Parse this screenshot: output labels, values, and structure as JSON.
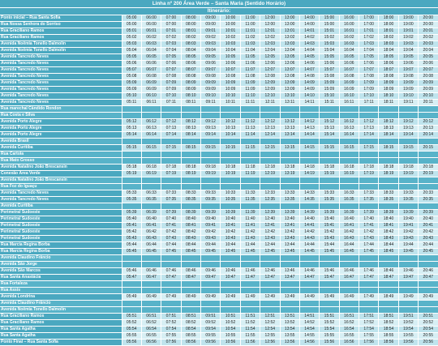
{
  "title": "Linha nº 200 Área Verde – Santa Maria (Sentido Horário)",
  "itinerary_label": "Itinerário:",
  "rows": [
    {
      "stop": "Ponto inicial – Rua Santa Sofia",
      "times": [
        "05:00",
        "06:00",
        "07:00",
        "08:00",
        "09:00",
        "10:00",
        "11:00",
        "12:00",
        "13:00",
        "14:00",
        "15:00",
        "16:00",
        "17:00",
        "18:00",
        "19:00",
        "20:00"
      ]
    },
    {
      "stop": "Rua Nossa Senhora do Sorriso",
      "times": [
        "05:00",
        "06:00",
        "07:00",
        "08:00",
        "09:00",
        "10:00",
        "11:00",
        "12:00",
        "13:00",
        "14:00",
        "15:00",
        "16:00",
        "17:00",
        "18:00",
        "19:00",
        "20:00"
      ]
    },
    {
      "stop": "Rua Graciliano Ramos",
      "times": [
        "05:01",
        "06:01",
        "07:01",
        "08:01",
        "09:01",
        "10:01",
        "11:01",
        "12:01",
        "13:01",
        "14:01",
        "15:01",
        "16:01",
        "17:01",
        "18:01",
        "19:01",
        "20:01"
      ]
    },
    {
      "stop": "Rua Graciliano Ramos",
      "times": [
        "05:02",
        "06:02",
        "07:02",
        "08:02",
        "09:02",
        "10:02",
        "11:02",
        "12:02",
        "13:02",
        "14:02",
        "15:02",
        "16:02",
        "17:02",
        "18:02",
        "19:02",
        "20:02"
      ]
    },
    {
      "stop": "Avenida Noêmia Tonello Dalmolin",
      "times": [
        "05:03",
        "06:03",
        "07:03",
        "08:03",
        "09:03",
        "10:03",
        "11:03",
        "12:03",
        "13:03",
        "14:03",
        "15:03",
        "16:03",
        "17:03",
        "18:03",
        "19:03",
        "20:03"
      ]
    },
    {
      "stop": "Avenida Noêmia Tonello Dalmolin",
      "times": [
        "05:04",
        "06:04",
        "07:04",
        "08:04",
        "09:04",
        "10:04",
        "11:04",
        "12:04",
        "13:04",
        "14:04",
        "15:04",
        "16:04",
        "17:04",
        "18:04",
        "19:04",
        "20:04"
      ]
    },
    {
      "stop": "Avenida Tancredo Neves",
      "times": [
        "05:05",
        "06:05",
        "07:05",
        "08:05",
        "09:05",
        "10:05",
        "11:05",
        "12:05",
        "13:05",
        "14:05",
        "15:05",
        "16:05",
        "17:05",
        "18:05",
        "19:05",
        "20:05"
      ]
    },
    {
      "stop": "Avenida Tancredo Neves",
      "times": [
        "05:06",
        "06:06",
        "07:06",
        "08:06",
        "09:06",
        "10:06",
        "11:06",
        "12:06",
        "13:06",
        "14:06",
        "15:06",
        "16:06",
        "17:06",
        "18:06",
        "19:06",
        "20:06"
      ]
    },
    {
      "stop": "Avenida Tancredo Neves",
      "times": [
        "05:07",
        "06:07",
        "07:07",
        "08:07",
        "09:07",
        "10:07",
        "11:07",
        "12:07",
        "13:07",
        "14:07",
        "15:07",
        "16:07",
        "17:07",
        "18:07",
        "19:07",
        "20:07"
      ]
    },
    {
      "stop": "Avenida Tancredo Neves",
      "times": [
        "05:08",
        "06:08",
        "07:08",
        "08:08",
        "09:08",
        "10:08",
        "11:08",
        "12:08",
        "13:08",
        "14:08",
        "15:08",
        "16:08",
        "17:08",
        "18:08",
        "19:08",
        "20:08"
      ]
    },
    {
      "stop": "Avenida Tancredo Neves",
      "times": [
        "05:09",
        "06:09",
        "07:09",
        "08:09",
        "09:09",
        "10:09",
        "11:09",
        "12:09",
        "13:09",
        "14:09",
        "15:09",
        "16:09",
        "17:09",
        "18:09",
        "19:09",
        "20:09"
      ]
    },
    {
      "stop": "Avenida Tancredo Neves",
      "times": [
        "05:09",
        "06:09",
        "07:09",
        "08:09",
        "09:09",
        "10:09",
        "11:09",
        "12:09",
        "13:09",
        "14:09",
        "15:09",
        "16:09",
        "17:09",
        "18:09",
        "19:09",
        "20:09"
      ]
    },
    {
      "stop": "Avenida Tancredo Neves",
      "times": [
        "05:10",
        "06:10",
        "07:10",
        "08:10",
        "09:10",
        "10:10",
        "11:10",
        "12:10",
        "13:10",
        "14:10",
        "15:10",
        "16:10",
        "17:10",
        "18:10",
        "19:10",
        "20:10"
      ]
    },
    {
      "stop": "Avenida Tancredo Neves",
      "times": [
        "05:11",
        "06:11",
        "07:11",
        "08:11",
        "09:11",
        "10:11",
        "11:11",
        "12:11",
        "13:11",
        "14:11",
        "15:11",
        "16:11",
        "17:11",
        "18:11",
        "19:11",
        "20:11"
      ]
    },
    {
      "stop": "Rua marechal Cândido Rondon",
      "times": []
    },
    {
      "stop": "Rua Costa e Silva",
      "times": []
    },
    {
      "stop": "Avenida Porto Alegre",
      "times": [
        "05:12",
        "06:12",
        "07:12",
        "08:12",
        "09:12",
        "10:12",
        "11:12",
        "12:12",
        "13:12",
        "14:12",
        "15:12",
        "16:12",
        "17:12",
        "18:12",
        "19:12",
        "20:12"
      ]
    },
    {
      "stop": "Avenida Porto Alegre",
      "times": [
        "05:13",
        "06:13",
        "07:13",
        "08:13",
        "09:13",
        "10:13",
        "11:13",
        "12:13",
        "13:13",
        "14:13",
        "15:13",
        "16:13",
        "17:13",
        "18:13",
        "19:13",
        "20:13"
      ]
    },
    {
      "stop": "Avenida Porto Alegre",
      "times": [
        "05:14",
        "06:14",
        "07:14",
        "08:14",
        "09:14",
        "10:14",
        "11:14",
        "12:14",
        "13:14",
        "14:14",
        "15:14",
        "16:14",
        "17:14",
        "18:14",
        "19:14",
        "20:14"
      ]
    },
    {
      "stop": "Avenida Brasil",
      "times": []
    },
    {
      "stop": "Avenida Curitiba",
      "times": [
        "05:15",
        "06:15",
        "07:15",
        "08:15",
        "09:15",
        "10:15",
        "11:15",
        "12:15",
        "13:15",
        "14:15",
        "15:15",
        "16:15",
        "17:15",
        "18:15",
        "19:15",
        "20:15"
      ]
    },
    {
      "stop": "Rua Cartola",
      "times": []
    },
    {
      "stop": "Rua Mato Grosso",
      "times": []
    },
    {
      "stop": "Avenida Natalino João Brescansin",
      "times": [
        "05:18",
        "06:18",
        "07:18",
        "08:18",
        "09:18",
        "10:18",
        "11:18",
        "12:18",
        "13:18",
        "14:18",
        "15:18",
        "16:18",
        "17:18",
        "18:18",
        "19:18",
        "20:18"
      ]
    },
    {
      "stop": "Conexão Área Verde",
      "times": [
        "05:19",
        "06:19",
        "07:19",
        "08:19",
        "09:19",
        "10:19",
        "11:19",
        "12:19",
        "13:19",
        "14:19",
        "15:19",
        "16:19",
        "17:19",
        "18:19",
        "19:19",
        "20:19"
      ]
    },
    {
      "stop": "Avenida Natalino João Brescansin",
      "times": []
    },
    {
      "stop": "Rua Foz do Iguaçu",
      "times": []
    },
    {
      "stop": "Avenida Tancredo Neves",
      "times": [
        "05:33",
        "06:33",
        "07:33",
        "08:33",
        "09:33",
        "10:33",
        "11:33",
        "12:33",
        "13:33",
        "14:33",
        "15:33",
        "16:33",
        "17:33",
        "18:33",
        "19:33",
        "20:33"
      ]
    },
    {
      "stop": "Avenida Tancredo Neves",
      "times": [
        "05:35",
        "06:35",
        "07:35",
        "08:35",
        "09:35",
        "10:35",
        "11:35",
        "12:35",
        "13:35",
        "14:35",
        "15:35",
        "16:35",
        "17:35",
        "18:35",
        "19:35",
        "20:35"
      ]
    },
    {
      "stop": "Avenida Curitiba",
      "times": []
    },
    {
      "stop": "Perimetral Sudoeste",
      "times": [
        "05:39",
        "06:39",
        "07:39",
        "08:39",
        "09:39",
        "10:39",
        "11:39",
        "12:39",
        "13:39",
        "14:39",
        "15:39",
        "16:39",
        "17:39",
        "18:39",
        "19:39",
        "20:39"
      ]
    },
    {
      "stop": "Perimetral Sudoeste",
      "times": [
        "05:40",
        "06:40",
        "07:40",
        "08:40",
        "09:40",
        "10:40",
        "11:40",
        "12:40",
        "13:40",
        "14:40",
        "15:40",
        "16:40",
        "17:40",
        "18:40",
        "19:40",
        "20:40"
      ]
    },
    {
      "stop": "Perimetral Sudoeste",
      "times": [
        "05:41",
        "06:41",
        "07:41",
        "08:41",
        "09:41",
        "10:41",
        "11:41",
        "12:41",
        "13:41",
        "14:41",
        "15:41",
        "16:41",
        "17:41",
        "18:41",
        "19:41",
        "20:41"
      ]
    },
    {
      "stop": "Perimetral Sudoeste",
      "times": [
        "05:42",
        "06:42",
        "07:42",
        "08:42",
        "09:42",
        "10:42",
        "11:42",
        "12:42",
        "13:42",
        "14:42",
        "15:42",
        "16:42",
        "17:42",
        "18:42",
        "19:42",
        "20:42"
      ]
    },
    {
      "stop": "Perimetral Sudoeste",
      "times": [
        "05:43",
        "06:43",
        "07:43",
        "08:43",
        "09:43",
        "10:43",
        "11:43",
        "12:43",
        "13:43",
        "14:43",
        "15:43",
        "16:43",
        "17:43",
        "18:43",
        "19:43",
        "20:43"
      ]
    },
    {
      "stop": "Rua Marcia Regina Borba",
      "times": [
        "05:44",
        "06:44",
        "07:44",
        "08:44",
        "09:44",
        "10:44",
        "11:44",
        "12:44",
        "13:44",
        "14:44",
        "15:44",
        "16:44",
        "17:44",
        "18:44",
        "19:44",
        "20:44"
      ]
    },
    {
      "stop": "Rua Marcia Regina Borba",
      "times": [
        "05:45",
        "06:45",
        "07:45",
        "08:45",
        "09:45",
        "10:45",
        "11:45",
        "12:45",
        "13:45",
        "14:45",
        "15:45",
        "16:45",
        "17:45",
        "18:45",
        "19:45",
        "20:45"
      ]
    },
    {
      "stop": "Avenida Claudino Frâncio",
      "times": []
    },
    {
      "stop": "Avenida São Jorge",
      "times": []
    },
    {
      "stop": "Avenida São Marcos",
      "times": [
        "05:46",
        "06:46",
        "07:46",
        "08:46",
        "09:46",
        "10:46",
        "11:46",
        "12:46",
        "13:46",
        "14:46",
        "15:46",
        "16:46",
        "17:46",
        "18:46",
        "19:46",
        "20:46"
      ]
    },
    {
      "stop": "Rua Santa Anastácia",
      "times": [
        "05:47",
        "06:47",
        "07:47",
        "08:47",
        "09:47",
        "10:47",
        "11:47",
        "12:47",
        "13:47",
        "14:47",
        "15:47",
        "16:47",
        "17:47",
        "18:47",
        "19:47",
        "20:47"
      ]
    },
    {
      "stop": "Rua Fortaleza",
      "times": []
    },
    {
      "stop": "Rua Assis",
      "times": []
    },
    {
      "stop": "Avenida Londrina",
      "times": [
        "05:49",
        "06:49",
        "07:49",
        "08:49",
        "09:49",
        "10:49",
        "11:49",
        "12:49",
        "13:49",
        "14:49",
        "15:49",
        "16:49",
        "17:49",
        "18:49",
        "19:49",
        "20:49"
      ]
    },
    {
      "stop": "Avenida Claudino Frâncio",
      "times": []
    },
    {
      "stop": "Avenida Noêmia Tonello Dalmolin",
      "times": []
    },
    {
      "stop": "Rua Graciliano Ramos",
      "times": [
        "05:51",
        "06:51",
        "07:51",
        "08:51",
        "09:51",
        "10:51",
        "11:51",
        "12:51",
        "13:51",
        "14:51",
        "15:51",
        "16:51",
        "17:51",
        "18:51",
        "19:51",
        "20:51"
      ]
    },
    {
      "stop": "Rua Graciliano Ramos",
      "times": [
        "05:52",
        "06:52",
        "07:52",
        "08:52",
        "09:52",
        "10:52",
        "11:52",
        "12:52",
        "13:52",
        "14:52",
        "15:52",
        "16:52",
        "17:52",
        "18:52",
        "19:52",
        "20:52"
      ]
    },
    {
      "stop": "Rua Santa Agatha",
      "times": [
        "05:54",
        "06:54",
        "07:54",
        "08:54",
        "09:54",
        "10:54",
        "11:54",
        "12:54",
        "13:54",
        "14:54",
        "15:54",
        "16:54",
        "17:54",
        "18:54",
        "19:54",
        "20:54"
      ]
    },
    {
      "stop": "Rua Santa Agatha",
      "times": [
        "05:55",
        "06:55",
        "07:55",
        "08:55",
        "09:55",
        "10:55",
        "11:55",
        "12:55",
        "13:55",
        "14:55",
        "15:55",
        "16:55",
        "17:55",
        "18:55",
        "19:55",
        "20:55"
      ]
    },
    {
      "stop": "Ponto Final – Rua Santa Sofia",
      "times": [
        "05:56",
        "06:56",
        "07:56",
        "08:56",
        "09:56",
        "10:56",
        "11:56",
        "12:56",
        "13:56",
        "14:56",
        "15:56",
        "16:56",
        "17:56",
        "18:56",
        "19:56",
        "20:56"
      ]
    }
  ]
}
